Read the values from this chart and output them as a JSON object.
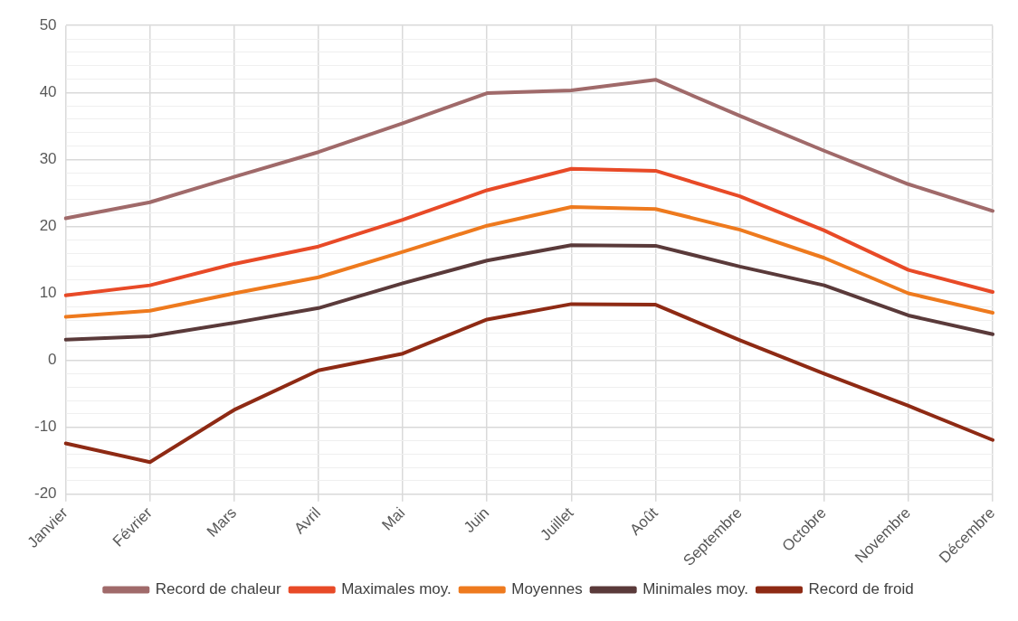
{
  "chart_data": {
    "type": "line",
    "categories": [
      "Janvier",
      "Février",
      "Mars",
      "Avril",
      "Mai",
      "Juin",
      "Juillet",
      "Août",
      "Septembre",
      "Octobre",
      "Novembre",
      "Décembre"
    ],
    "series": [
      {
        "name": "Record de chaleur",
        "color": "#a06a6a",
        "values": [
          21.2,
          23.6,
          27.4,
          31.1,
          35.4,
          39.9,
          40.3,
          41.9,
          36.5,
          31.3,
          26.3,
          22.3
        ]
      },
      {
        "name": "Maximales moy.",
        "color": "#e84a27",
        "values": [
          9.7,
          11.2,
          14.4,
          17.0,
          21.0,
          25.4,
          28.6,
          28.3,
          24.5,
          19.4,
          13.5,
          10.2
        ]
      },
      {
        "name": "Moyennes",
        "color": "#ee7a1e",
        "values": [
          6.5,
          7.4,
          10.0,
          12.4,
          16.2,
          20.1,
          22.9,
          22.6,
          19.5,
          15.3,
          10.0,
          7.1
        ]
      },
      {
        "name": "Minimales moy.",
        "color": "#5a3a3a",
        "values": [
          3.1,
          3.6,
          5.6,
          7.8,
          11.5,
          14.9,
          17.2,
          17.1,
          14.0,
          11.2,
          6.7,
          3.9
        ]
      },
      {
        "name": "Record de froid",
        "color": "#8e2a14",
        "values": [
          -12.4,
          -15.2,
          -7.4,
          -1.5,
          1.0,
          6.1,
          8.4,
          8.3,
          3.0,
          -2.0,
          -6.8,
          -11.9
        ]
      }
    ],
    "ylim": [
      -20,
      50
    ],
    "yticks": [
      -20,
      {
        "value": -18,
        "label": null
      },
      {
        "value": -16,
        "label": null
      },
      {
        "value": -14,
        "label": null
      },
      {
        "value": -12,
        "label": null
      },
      -10,
      {
        "value": -8,
        "label": null
      },
      {
        "value": -6,
        "label": null
      },
      {
        "value": -4,
        "label": null
      },
      {
        "value": -2,
        "label": null
      },
      0,
      {
        "value": 2,
        "label": null
      },
      {
        "value": 4,
        "label": null
      },
      {
        "value": 6,
        "label": null
      },
      {
        "value": 8,
        "label": null
      },
      10,
      {
        "value": 12,
        "label": null
      },
      {
        "value": 14,
        "label": null
      },
      {
        "value": 16,
        "label": null
      },
      {
        "value": 18,
        "label": null
      },
      20,
      {
        "value": 22,
        "label": null
      },
      {
        "value": 24,
        "label": null
      },
      {
        "value": 26,
        "label": null
      },
      {
        "value": 28,
        "label": null
      },
      30,
      {
        "value": 32,
        "label": null
      },
      {
        "value": 34,
        "label": null
      },
      {
        "value": 36,
        "label": null
      },
      {
        "value": 38,
        "label": null
      },
      40,
      {
        "value": 42,
        "label": null
      },
      {
        "value": 44,
        "label": null
      },
      {
        "value": 46,
        "label": null
      },
      {
        "value": 48,
        "label": null
      },
      50
    ],
    "grid": true,
    "legend": "bottom",
    "marker": "none",
    "line_style": "solid"
  }
}
